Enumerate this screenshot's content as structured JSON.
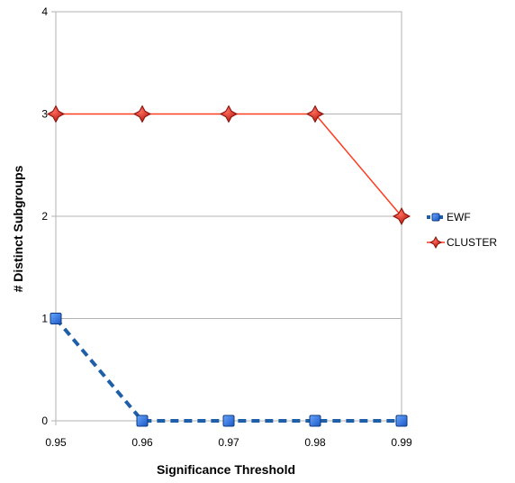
{
  "chart_data": {
    "type": "line",
    "title": "",
    "xlabel": "Significance Threshold",
    "ylabel": "# Distinct Subgroups",
    "x": [
      0.95,
      0.96,
      0.97,
      0.98,
      0.99
    ],
    "x_tick_labels": [
      "0.95",
      "0.96",
      "0.97",
      "0.98",
      "0.99"
    ],
    "y_tick_labels": [
      "0",
      "1",
      "2",
      "3",
      "4"
    ],
    "ylim": [
      0,
      4
    ],
    "xlim": [
      0.95,
      0.99
    ],
    "grid": "horizontal",
    "legend_position": "right",
    "series": [
      {
        "name": "EWF",
        "values": [
          1,
          0,
          0,
          0,
          0
        ],
        "color": "#1f5fa8",
        "line_style": "dashed",
        "marker": "square"
      },
      {
        "name": "CLUSTER",
        "values": [
          3,
          3,
          3,
          3,
          2
        ],
        "color": "#ff3b1f",
        "marker_color": "#c9211e",
        "line_style": "solid",
        "marker": "diamond"
      }
    ]
  }
}
